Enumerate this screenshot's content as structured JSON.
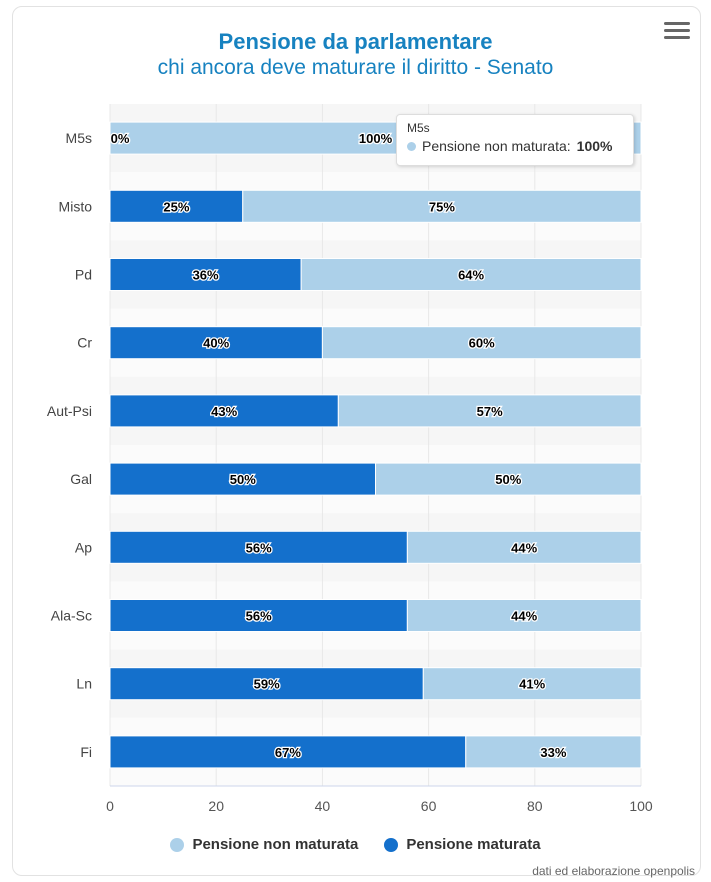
{
  "header": {
    "title": "Pensione da parlamentare",
    "subtitle": "chi ancora deve maturare il diritto - Senato"
  },
  "colors": {
    "maturata": "#1470cc",
    "non_maturata": "#acd0e9",
    "title": "#1782c0"
  },
  "tooltip": {
    "category": "M5s",
    "series_label": "Pensione non maturata:",
    "value": "100%"
  },
  "legend": {
    "non_maturata": "Pensione non maturata",
    "maturata": "Pensione maturata"
  },
  "credit": "dati ed elaborazione openpolis",
  "chart_data": {
    "type": "bar",
    "orientation": "horizontal",
    "stacking": "percent",
    "categories": [
      "M5s",
      "Misto",
      "Pd",
      "Cr",
      "Aut-Psi",
      "Gal",
      "Ap",
      "Ala-Sc",
      "Ln",
      "Fi"
    ],
    "series": [
      {
        "name": "Pensione maturata",
        "values": [
          0,
          25,
          36,
          40,
          43,
          50,
          56,
          56,
          59,
          67
        ]
      },
      {
        "name": "Pensione non maturata",
        "values": [
          100,
          75,
          64,
          60,
          57,
          50,
          44,
          44,
          41,
          33
        ]
      }
    ],
    "xlim": [
      0,
      100
    ],
    "xticks": [
      0,
      20,
      40,
      60,
      80,
      100
    ],
    "legend_position": "bottom",
    "grid": true
  }
}
